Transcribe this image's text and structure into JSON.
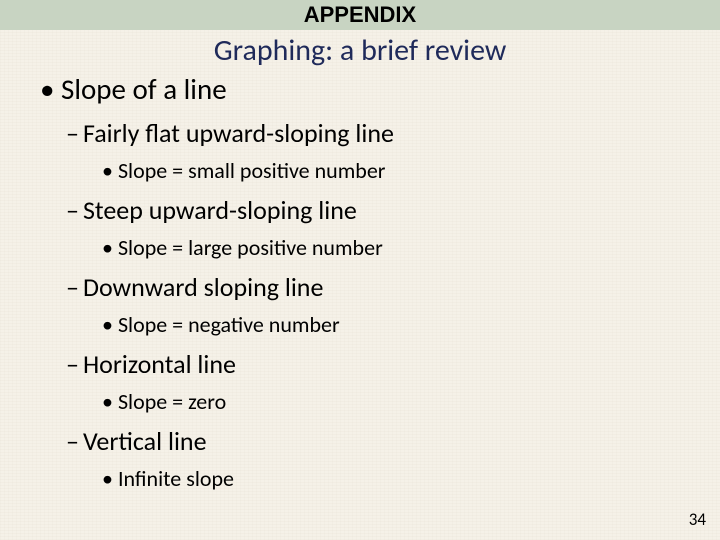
{
  "banner": {
    "label": "APPENDIX",
    "bg_color": "#c8d4c2"
  },
  "title": {
    "text": "Graphing: a brief review",
    "color": "#1f2a5a",
    "fontsize": 30
  },
  "content": {
    "heading": "Slope of a line",
    "items": [
      {
        "label": "Fairly flat upward-sloping line",
        "sub": "Slope = small positive number"
      },
      {
        "label": "Steep upward-sloping line",
        "sub": "Slope = large positive number"
      },
      {
        "label": "Downward sloping line",
        "sub": "Slope = negative number"
      },
      {
        "label": "Horizontal line",
        "sub": "Slope = zero"
      },
      {
        "label": "Vertical line",
        "sub": "Infinite slope"
      }
    ]
  },
  "page_number": "34",
  "background_color": "#f5f1e8"
}
